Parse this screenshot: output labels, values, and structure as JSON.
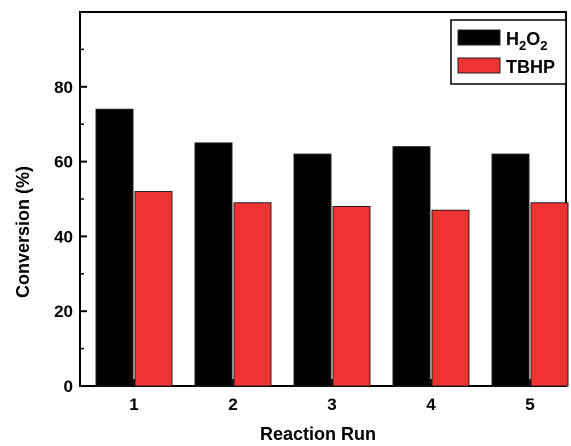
{
  "chart_data": {
    "type": "bar",
    "title": "",
    "xlabel": "Reaction Run",
    "ylabel": "Conversion (%)",
    "categories": [
      "1",
      "2",
      "3",
      "4",
      "5"
    ],
    "ylim": [
      0,
      100
    ],
    "yticks": [
      "0",
      "20",
      "40",
      "60",
      "80"
    ],
    "grid": false,
    "legend_position": "top-right",
    "series": [
      {
        "name": "H2O2",
        "color": "#000000",
        "values": [
          74,
          65,
          62,
          64,
          62
        ]
      },
      {
        "name": "TBHP",
        "color": "#ee3333",
        "values": [
          52,
          49,
          48,
          47,
          49
        ]
      }
    ]
  }
}
